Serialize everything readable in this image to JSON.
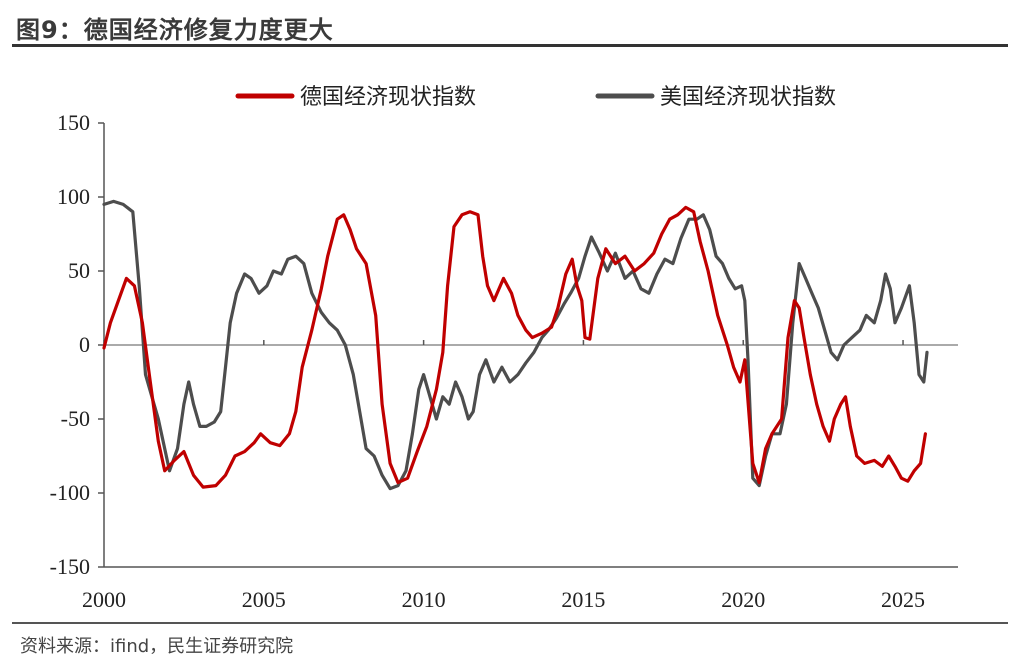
{
  "header": {
    "title": "图9：德国经济修复力度更大"
  },
  "footer": {
    "source": "资料来源：ifind，民生证券研究院"
  },
  "chart_data": {
    "type": "line",
    "xlim": [
      2000,
      2026
    ],
    "ylim": [
      -150,
      150
    ],
    "x_ticks": [
      "2000",
      "2005",
      "2010",
      "2015",
      "2020",
      "2025"
    ],
    "x_tick_values": [
      2000,
      2005,
      2010,
      2015,
      2020,
      2025
    ],
    "y_ticks": [
      "150",
      "100",
      "50",
      "0",
      "-50",
      "-100",
      "-150"
    ],
    "y_tick_values": [
      150,
      100,
      50,
      0,
      -50,
      -100,
      -150
    ],
    "legend_position": "top",
    "grid": false,
    "series": [
      {
        "name": "德国经济现状指数",
        "color": "#c00000",
        "points": [
          [
            2000.0,
            -2
          ],
          [
            2000.2,
            15
          ],
          [
            2000.45,
            30
          ],
          [
            2000.7,
            45
          ],
          [
            2000.95,
            40
          ],
          [
            2001.2,
            15
          ],
          [
            2001.45,
            -25
          ],
          [
            2001.7,
            -65
          ],
          [
            2001.9,
            -85
          ],
          [
            2002.2,
            -78
          ],
          [
            2002.5,
            -72
          ],
          [
            2002.8,
            -88
          ],
          [
            2003.1,
            -96
          ],
          [
            2003.5,
            -95
          ],
          [
            2003.8,
            -88
          ],
          [
            2004.1,
            -75
          ],
          [
            2004.4,
            -72
          ],
          [
            2004.7,
            -66
          ],
          [
            2004.9,
            -60
          ],
          [
            2005.2,
            -66
          ],
          [
            2005.5,
            -68
          ],
          [
            2005.8,
            -60
          ],
          [
            2006.0,
            -45
          ],
          [
            2006.2,
            -15
          ],
          [
            2006.5,
            10
          ],
          [
            2006.8,
            38
          ],
          [
            2007.0,
            60
          ],
          [
            2007.3,
            85
          ],
          [
            2007.5,
            88
          ],
          [
            2007.7,
            78
          ],
          [
            2007.9,
            65
          ],
          [
            2008.2,
            55
          ],
          [
            2008.5,
            20
          ],
          [
            2008.7,
            -40
          ],
          [
            2008.95,
            -80
          ],
          [
            2009.2,
            -93
          ],
          [
            2009.5,
            -90
          ],
          [
            2009.8,
            -72
          ],
          [
            2010.1,
            -55
          ],
          [
            2010.4,
            -30
          ],
          [
            2010.6,
            -5
          ],
          [
            2010.75,
            40
          ],
          [
            2010.95,
            80
          ],
          [
            2011.2,
            88
          ],
          [
            2011.45,
            90
          ],
          [
            2011.7,
            88
          ],
          [
            2011.85,
            60
          ],
          [
            2012.0,
            40
          ],
          [
            2012.2,
            30
          ],
          [
            2012.5,
            45
          ],
          [
            2012.75,
            35
          ],
          [
            2012.95,
            20
          ],
          [
            2013.2,
            10
          ],
          [
            2013.4,
            5
          ],
          [
            2013.7,
            8
          ],
          [
            2014.0,
            12
          ],
          [
            2014.2,
            25
          ],
          [
            2014.45,
            48
          ],
          [
            2014.65,
            58
          ],
          [
            2014.8,
            40
          ],
          [
            2014.95,
            30
          ],
          [
            2015.05,
            5
          ],
          [
            2015.2,
            4
          ],
          [
            2015.45,
            45
          ],
          [
            2015.7,
            65
          ],
          [
            2016.0,
            55
          ],
          [
            2016.3,
            60
          ],
          [
            2016.6,
            50
          ],
          [
            2016.9,
            55
          ],
          [
            2017.2,
            62
          ],
          [
            2017.45,
            75
          ],
          [
            2017.7,
            85
          ],
          [
            2017.95,
            88
          ],
          [
            2018.2,
            93
          ],
          [
            2018.45,
            90
          ],
          [
            2018.65,
            70
          ],
          [
            2018.9,
            50
          ],
          [
            2019.2,
            20
          ],
          [
            2019.5,
            0
          ],
          [
            2019.7,
            -15
          ],
          [
            2019.9,
            -25
          ],
          [
            2020.05,
            -10
          ],
          [
            2020.3,
            -80
          ],
          [
            2020.5,
            -93
          ],
          [
            2020.7,
            -70
          ],
          [
            2020.9,
            -60
          ],
          [
            2021.2,
            -50
          ],
          [
            2021.4,
            5
          ],
          [
            2021.6,
            30
          ],
          [
            2021.75,
            25
          ],
          [
            2021.9,
            5
          ],
          [
            2022.1,
            -20
          ],
          [
            2022.3,
            -40
          ],
          [
            2022.5,
            -55
          ],
          [
            2022.7,
            -65
          ],
          [
            2022.85,
            -50
          ],
          [
            2023.05,
            -40
          ],
          [
            2023.2,
            -35
          ],
          [
            2023.35,
            -55
          ],
          [
            2023.55,
            -75
          ],
          [
            2023.8,
            -80
          ],
          [
            2024.1,
            -78
          ],
          [
            2024.35,
            -82
          ],
          [
            2024.55,
            -75
          ],
          [
            2024.75,
            -82
          ],
          [
            2024.95,
            -90
          ],
          [
            2025.15,
            -92
          ],
          [
            2025.35,
            -85
          ],
          [
            2025.55,
            -80
          ],
          [
            2025.7,
            -60
          ]
        ]
      },
      {
        "name": "美国经济现状指数",
        "color": "#4d4d4d",
        "points": [
          [
            2000.0,
            95
          ],
          [
            2000.3,
            97
          ],
          [
            2000.6,
            95
          ],
          [
            2000.9,
            90
          ],
          [
            2001.1,
            40
          ],
          [
            2001.3,
            -20
          ],
          [
            2001.5,
            -35
          ],
          [
            2001.7,
            -50
          ],
          [
            2001.9,
            -70
          ],
          [
            2002.05,
            -85
          ],
          [
            2002.3,
            -70
          ],
          [
            2002.5,
            -40
          ],
          [
            2002.65,
            -25
          ],
          [
            2002.8,
            -40
          ],
          [
            2003.0,
            -55
          ],
          [
            2003.2,
            -55
          ],
          [
            2003.45,
            -52
          ],
          [
            2003.65,
            -45
          ],
          [
            2003.8,
            -15
          ],
          [
            2003.95,
            15
          ],
          [
            2004.15,
            35
          ],
          [
            2004.4,
            48
          ],
          [
            2004.6,
            45
          ],
          [
            2004.85,
            35
          ],
          [
            2005.1,
            40
          ],
          [
            2005.3,
            50
          ],
          [
            2005.55,
            48
          ],
          [
            2005.75,
            58
          ],
          [
            2006.0,
            60
          ],
          [
            2006.25,
            55
          ],
          [
            2006.5,
            35
          ],
          [
            2006.8,
            22
          ],
          [
            2007.05,
            15
          ],
          [
            2007.3,
            10
          ],
          [
            2007.55,
            0
          ],
          [
            2007.8,
            -20
          ],
          [
            2008.0,
            -45
          ],
          [
            2008.2,
            -70
          ],
          [
            2008.45,
            -75
          ],
          [
            2008.7,
            -88
          ],
          [
            2008.95,
            -97
          ],
          [
            2009.2,
            -95
          ],
          [
            2009.45,
            -85
          ],
          [
            2009.65,
            -60
          ],
          [
            2009.85,
            -30
          ],
          [
            2010.0,
            -20
          ],
          [
            2010.2,
            -35
          ],
          [
            2010.4,
            -50
          ],
          [
            2010.6,
            -35
          ],
          [
            2010.8,
            -40
          ],
          [
            2011.0,
            -25
          ],
          [
            2011.2,
            -35
          ],
          [
            2011.4,
            -50
          ],
          [
            2011.55,
            -45
          ],
          [
            2011.75,
            -20
          ],
          [
            2011.95,
            -10
          ],
          [
            2012.2,
            -25
          ],
          [
            2012.45,
            -15
          ],
          [
            2012.7,
            -25
          ],
          [
            2012.95,
            -20
          ],
          [
            2013.2,
            -12
          ],
          [
            2013.45,
            -5
          ],
          [
            2013.7,
            5
          ],
          [
            2013.9,
            10
          ],
          [
            2014.15,
            18
          ],
          [
            2014.4,
            28
          ],
          [
            2014.6,
            35
          ],
          [
            2014.85,
            45
          ],
          [
            2015.05,
            60
          ],
          [
            2015.25,
            73
          ],
          [
            2015.5,
            62
          ],
          [
            2015.75,
            50
          ],
          [
            2016.0,
            62
          ],
          [
            2016.3,
            45
          ],
          [
            2016.55,
            50
          ],
          [
            2016.8,
            38
          ],
          [
            2017.05,
            35
          ],
          [
            2017.3,
            48
          ],
          [
            2017.55,
            58
          ],
          [
            2017.8,
            55
          ],
          [
            2018.05,
            72
          ],
          [
            2018.3,
            85
          ],
          [
            2018.55,
            85
          ],
          [
            2018.75,
            88
          ],
          [
            2018.95,
            78
          ],
          [
            2019.15,
            60
          ],
          [
            2019.35,
            55
          ],
          [
            2019.55,
            45
          ],
          [
            2019.75,
            38
          ],
          [
            2019.95,
            40
          ],
          [
            2020.05,
            30
          ],
          [
            2020.15,
            -10
          ],
          [
            2020.3,
            -90
          ],
          [
            2020.5,
            -95
          ],
          [
            2020.7,
            -75
          ],
          [
            2020.9,
            -60
          ],
          [
            2021.15,
            -60
          ],
          [
            2021.35,
            -40
          ],
          [
            2021.55,
            15
          ],
          [
            2021.75,
            55
          ],
          [
            2021.95,
            45
          ],
          [
            2022.15,
            35
          ],
          [
            2022.35,
            25
          ],
          [
            2022.55,
            10
          ],
          [
            2022.75,
            -5
          ],
          [
            2022.95,
            -10
          ],
          [
            2023.15,
            0
          ],
          [
            2023.4,
            5
          ],
          [
            2023.65,
            10
          ],
          [
            2023.85,
            20
          ],
          [
            2024.1,
            15
          ],
          [
            2024.3,
            30
          ],
          [
            2024.45,
            48
          ],
          [
            2024.6,
            38
          ],
          [
            2024.75,
            15
          ],
          [
            2024.95,
            25
          ],
          [
            2025.2,
            40
          ],
          [
            2025.35,
            15
          ],
          [
            2025.5,
            -20
          ],
          [
            2025.65,
            -25
          ],
          [
            2025.75,
            -5
          ]
        ]
      }
    ]
  }
}
